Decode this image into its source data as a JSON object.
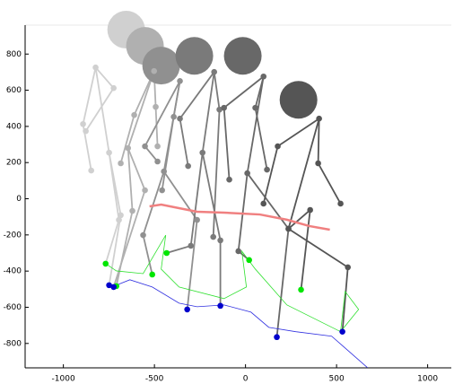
{
  "chart_data": {
    "type": "line",
    "xlim": [
      -1210,
      1130
    ],
    "ylim": [
      -935,
      960
    ],
    "xticks": [
      -1000,
      -500,
      0,
      500,
      1000
    ],
    "yticks": [
      -800,
      -600,
      -400,
      -200,
      0,
      200,
      400,
      600,
      800
    ],
    "left_foot_color": "#00e600",
    "right_foot_color": "#0000cc",
    "figures": [
      {
        "color": "#d0d0d0",
        "head": {
          "x": -655,
          "y": 935
        },
        "joints": {
          "x": [
            -823,
            -892,
            -847,
            -724,
            -877,
            -749,
            -695,
            -768,
            -685,
            -749
          ],
          "y": [
            726,
            413,
            156,
            612,
            374,
            255,
            -117,
            -359,
            -91,
            -478
          ]
        }
      },
      {
        "color": "#b0b0b0",
        "head": {
          "x": -552,
          "y": 845
        },
        "joints": {
          "x": [
            -502,
            -611,
            -685,
            -493,
            -483,
            -645,
            -621,
            -709,
            -552,
            -724
          ],
          "y": [
            706,
            463,
            196,
            508,
            290,
            280,
            -67,
            -483,
            47,
            -488
          ]
        }
      },
      {
        "color": "#909090",
        "head": {
          "x": -463,
          "y": 736
        },
        "joints": {
          "x": [
            -360,
            -552,
            -483,
            -394,
            -458,
            -448,
            -562,
            -512,
            -266,
            -320
          ],
          "y": [
            651,
            290,
            206,
            453,
            47,
            151,
            -201,
            -419,
            -117,
            -612
          ]
        }
      },
      {
        "color": "#7a7a7a",
        "head": {
          "x": -281,
          "y": 790
        },
        "joints": {
          "x": [
            -172,
            -360,
            -315,
            -143,
            -177,
            -236,
            -300,
            -433,
            -138,
            -138
          ],
          "y": [
            701,
            443,
            181,
            493,
            -211,
            255,
            -260,
            -300,
            -230,
            -592
          ]
        }
      },
      {
        "color": "#686868",
        "head": {
          "x": -15,
          "y": 790
        },
        "joints": {
          "x": [
            99,
            -118,
            -89,
            54,
            118,
            10,
            -39,
            20,
            236,
            172
          ],
          "y": [
            676,
            503,
            106,
            503,
            161,
            141,
            -290,
            -339,
            -166,
            -765
          ]
        }
      },
      {
        "color": "#555555",
        "head": {
          "x": 291,
          "y": 547
        },
        "joints": {
          "x": [
            404,
            177,
            99,
            399,
            522,
            236,
            355,
            305,
            562,
            532
          ],
          "y": [
            443,
            290,
            -27,
            196,
            -27,
            -166,
            -62,
            -503,
            -379,
            -735
          ]
        }
      }
    ],
    "series": [
      {
        "color": "#f08080",
        "x": [
          -527,
          -463,
          -365,
          -266,
          -118,
          79,
          227,
          350,
          463
        ],
        "y": [
          -42,
          -32,
          -52,
          -72,
          -77,
          -87,
          -116,
          -151,
          -171
        ]
      },
      {
        "color": "#3030e0",
        "x": [
          -734,
          -635,
          -512,
          -365,
          -266,
          -118,
          30,
          128,
          276,
          473,
          670
        ],
        "y": [
          -488,
          -448,
          -488,
          -577,
          -597,
          -587,
          -627,
          -711,
          -735,
          -760,
          -934
        ]
      },
      {
        "color": "#30e030",
        "x": [
          -768,
          -709,
          -562,
          -438,
          -463,
          -365,
          -118,
          5,
          -20,
          54,
          227,
          522,
          621,
          547,
          522
        ],
        "y": [
          -359,
          -399,
          -414,
          -201,
          -389,
          -488,
          -552,
          -488,
          -290,
          -389,
          -587,
          -735,
          -612,
          -513,
          -735
        ]
      }
    ]
  }
}
